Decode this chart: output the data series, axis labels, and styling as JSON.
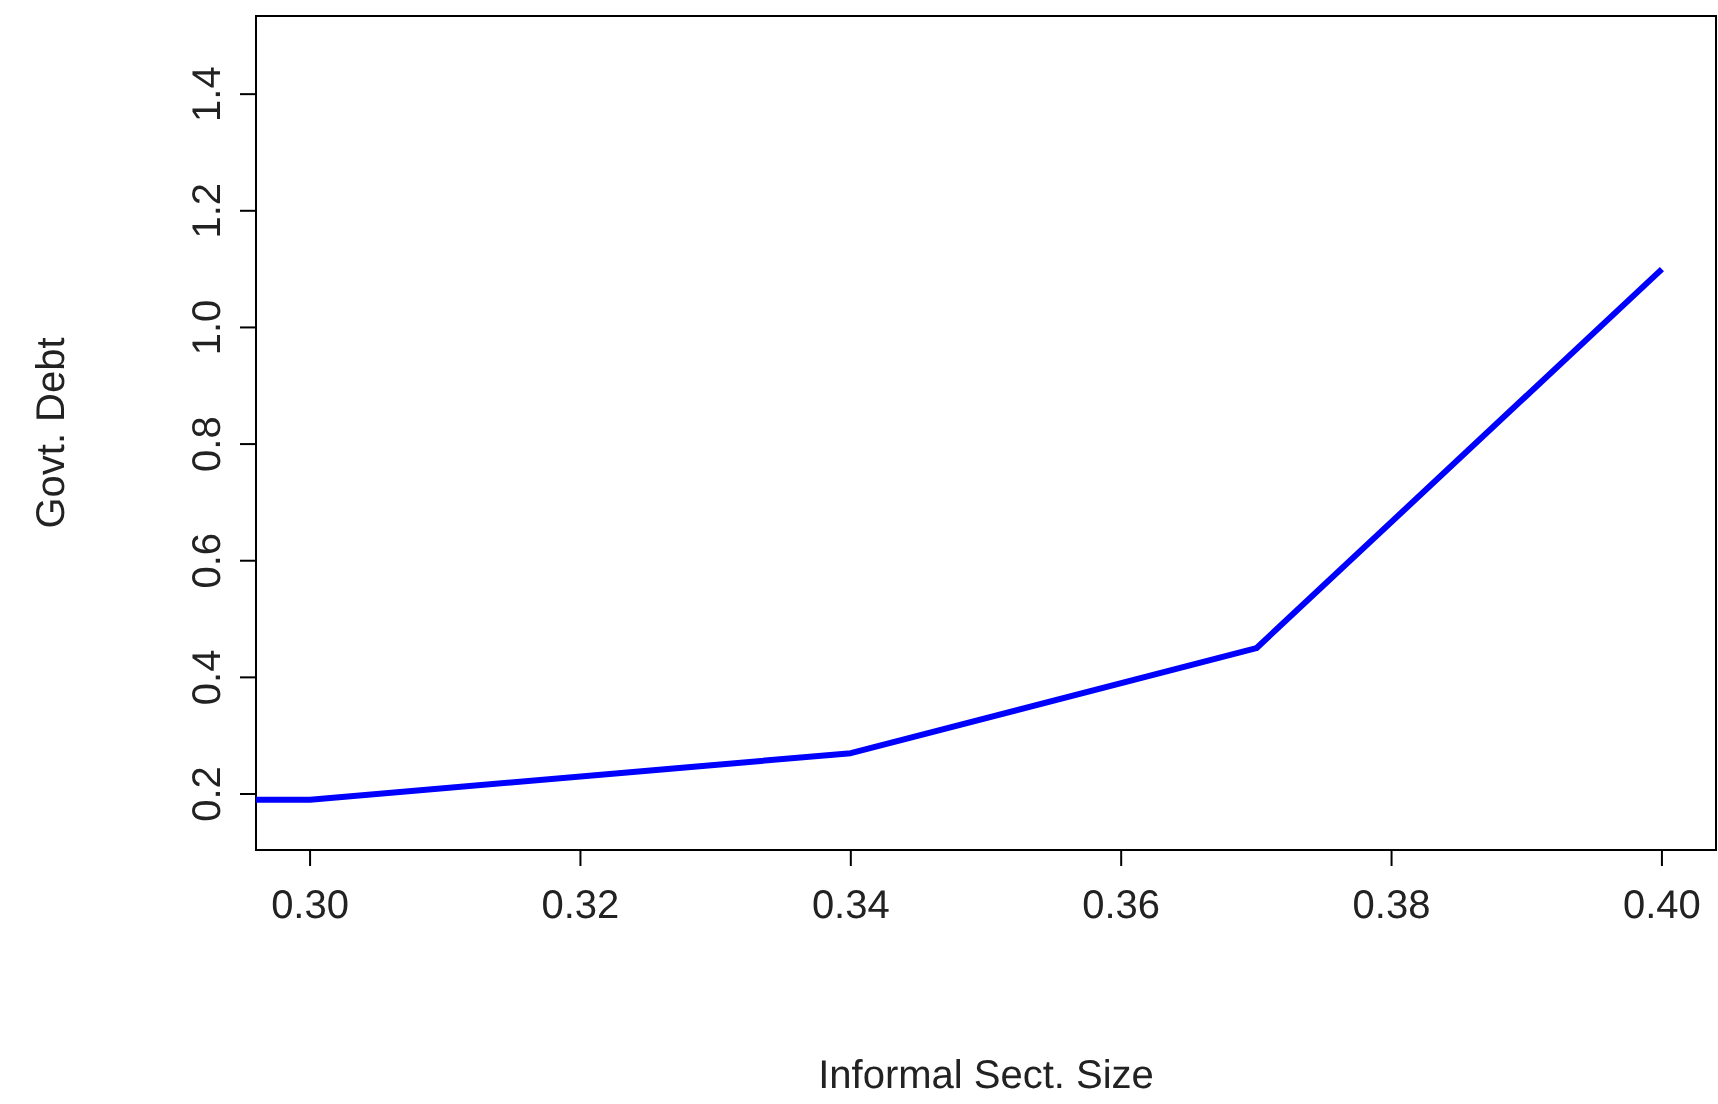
{
  "chart_data": {
    "type": "line",
    "xlabel": "Informal Sect. Size",
    "ylabel": "Govt. Debt",
    "x": [
      0.296,
      0.3,
      0.34,
      0.37,
      0.4
    ],
    "series": [
      {
        "color": "#0000ff",
        "values": [
          0.19,
          0.19,
          0.27,
          0.45,
          1.1
        ]
      }
    ],
    "xlim": [
      0.296,
      0.404
    ],
    "xticks": [
      {
        "value": 0.3,
        "label": "0.30"
      },
      {
        "value": 0.32,
        "label": "0.32"
      },
      {
        "value": 0.34,
        "label": "0.34"
      },
      {
        "value": 0.36,
        "label": "0.36"
      },
      {
        "value": 0.38,
        "label": "0.38"
      },
      {
        "value": 0.4,
        "label": "0.40"
      }
    ],
    "ylim": [
      0.104,
      1.534
    ],
    "yticks": [
      0.2,
      0.4,
      0.6,
      0.8,
      {
        "value": 1.0,
        "label": "1.0"
      },
      1.2,
      1.4
    ],
    "grid": false,
    "marker": "none",
    "line_style": "solid"
  }
}
